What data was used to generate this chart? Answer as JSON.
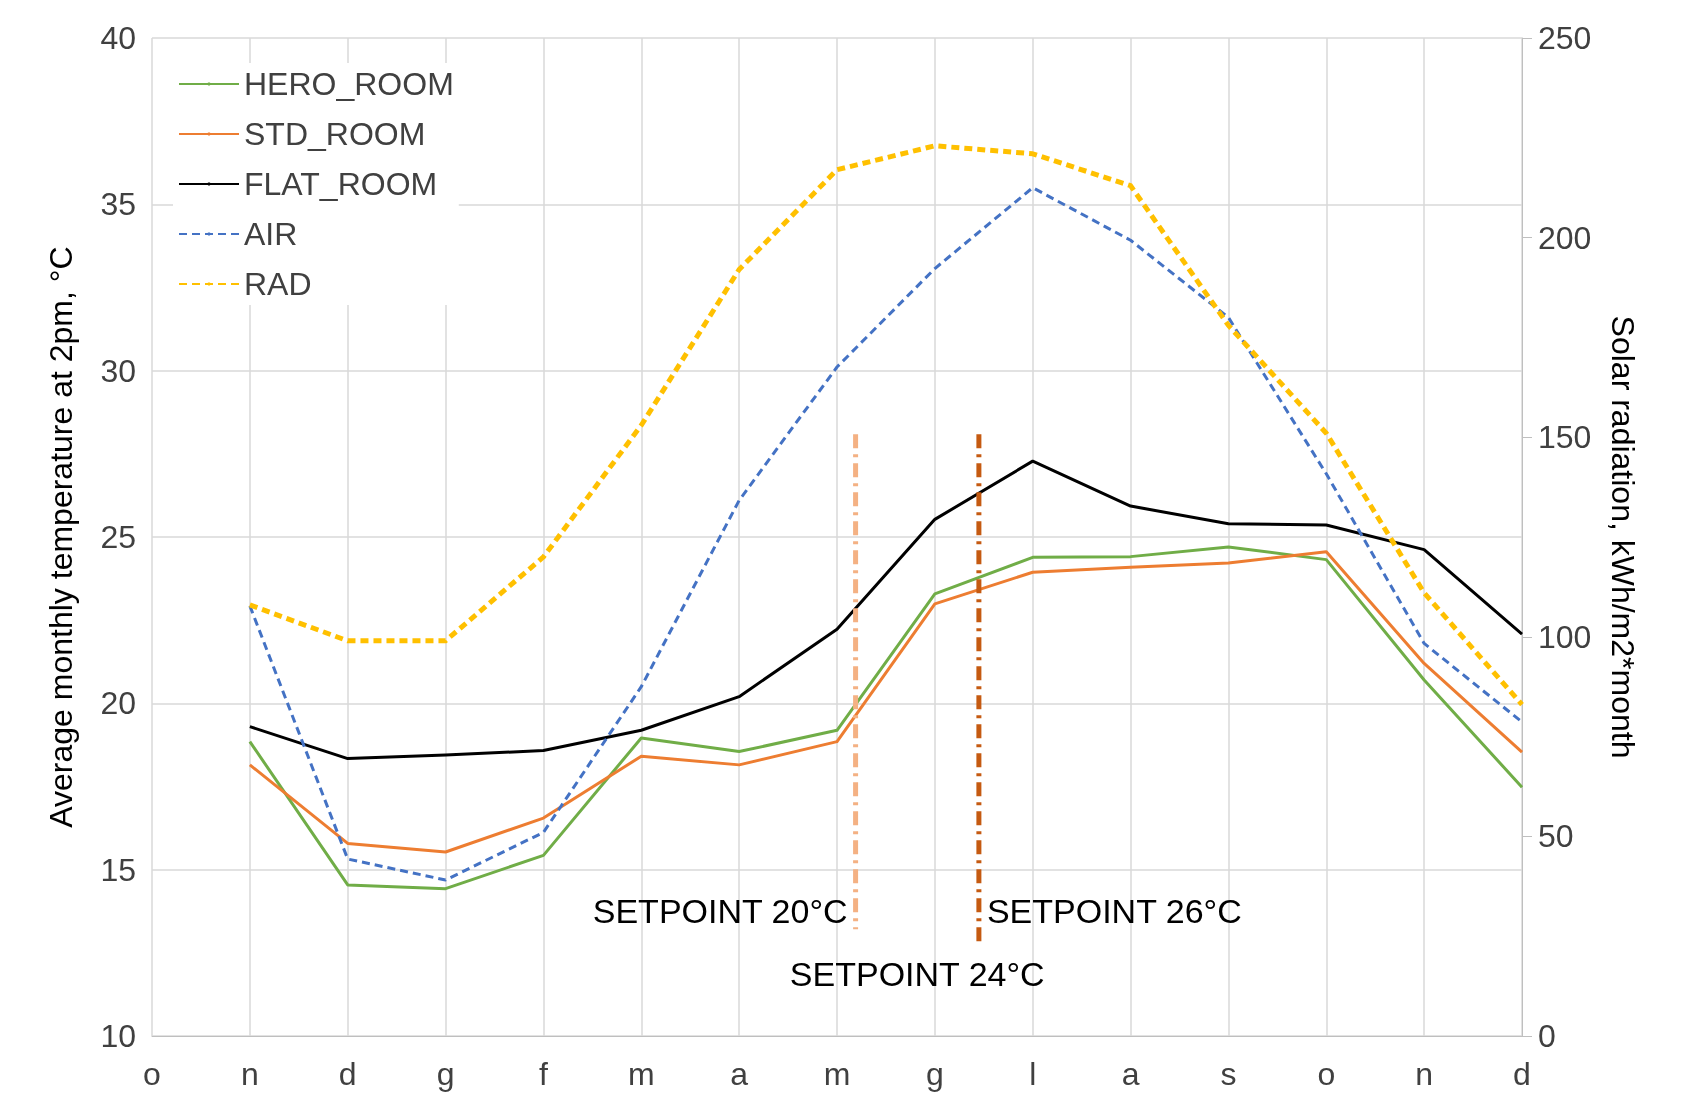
{
  "chart_data": {
    "type": "line",
    "ylabel": "Average monthly temperature at 2pm, °C",
    "y2label": "Solar radiation, kWh/m2*month",
    "categories": [
      "o",
      "n",
      "d",
      "g",
      "f",
      "m",
      "a",
      "m",
      "g",
      "l",
      "a",
      "s",
      "o",
      "n",
      "d"
    ],
    "ylim": [
      10,
      40
    ],
    "yticks": [
      10,
      15,
      20,
      25,
      30,
      35,
      40
    ],
    "y2lim": [
      0,
      250
    ],
    "y2ticks": [
      0,
      50,
      100,
      150,
      200,
      250
    ],
    "grid": true,
    "legend": "top left",
    "marker": "none",
    "series": [
      {
        "name": "HERO_ROOM",
        "color": "#70ad47",
        "line_style": "solid",
        "values": [
          null,
          18.85,
          14.54,
          14.43,
          15.43,
          18.96,
          18.55,
          19.19,
          23.29,
          24.39,
          24.41,
          24.7,
          24.32,
          20.7,
          17.48
        ]
      },
      {
        "name": "STD_ROOM",
        "color": "#ed7d31",
        "line_style": "solid",
        "values": [
          null,
          18.15,
          15.79,
          15.53,
          16.55,
          18.41,
          18.15,
          18.85,
          22.99,
          23.94,
          24.09,
          24.22,
          24.56,
          21.2,
          18.53
        ]
      },
      {
        "name": "FLAT_ROOM",
        "color": "#000000",
        "line_style": "solid",
        "values": [
          null,
          19.3,
          18.34,
          18.45,
          18.58,
          19.19,
          20.2,
          22.23,
          25.53,
          27.28,
          25.93,
          25.4,
          25.36,
          24.62,
          22.08
        ]
      },
      {
        "name": "AIR",
        "color": "#4472c4",
        "line_style": "dashed",
        "values": [
          null,
          22.93,
          15.32,
          14.69,
          16.12,
          20.5,
          26.1,
          30.11,
          33.07,
          35.5,
          33.92,
          31.6,
          26.9,
          21.8,
          19.44
        ]
      },
      {
        "name": "RAD",
        "color": "#ffc000",
        "line_style": "dashed",
        "axis": "y2",
        "values": [
          null,
          108,
          99,
          99,
          120,
          153,
          192,
          217,
          223,
          221,
          213,
          178,
          151,
          111,
          83
        ]
      }
    ],
    "annotations": [
      "SETPOINT 20°C",
      "SETPOINT 24°C",
      "SETPOINT 26°C"
    ]
  }
}
